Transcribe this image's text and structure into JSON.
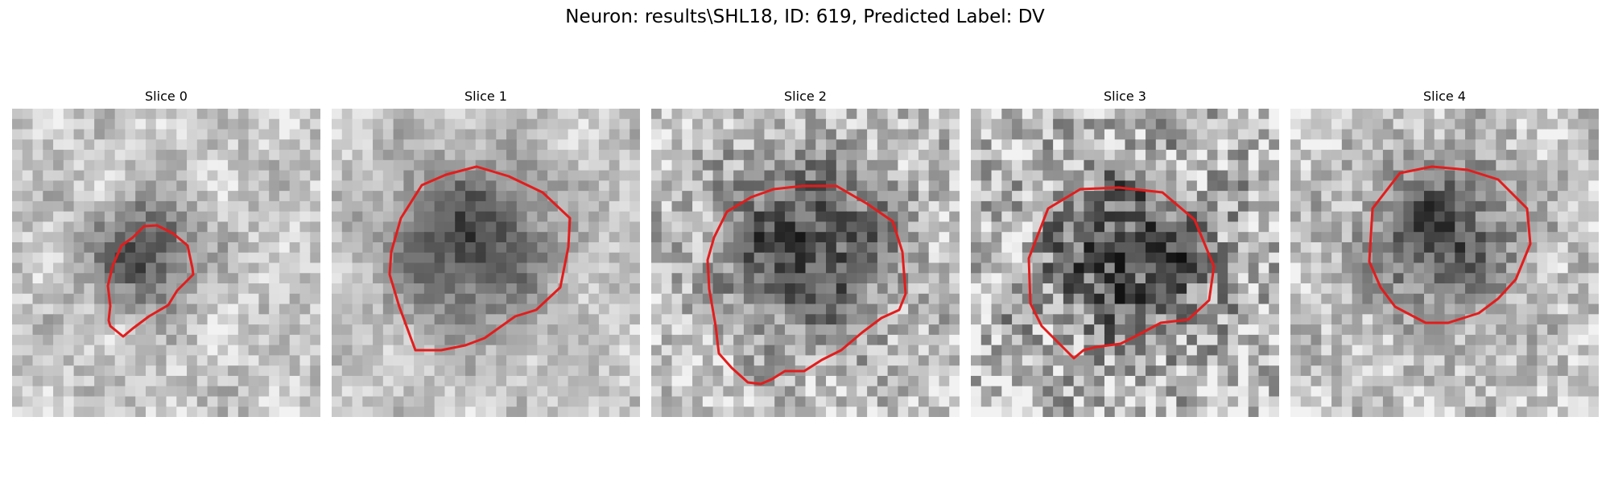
{
  "figure": {
    "title": "Neuron: results\\SHL18, ID: 619, Predicted Label: DV",
    "colormap": "grayscale",
    "contour_color": "#e41c1c"
  },
  "panels": [
    {
      "title": "Slice 0"
    },
    {
      "title": "Slice 1"
    },
    {
      "title": "Slice 2"
    },
    {
      "title": "Slice 3"
    },
    {
      "title": "Slice 4"
    }
  ]
}
